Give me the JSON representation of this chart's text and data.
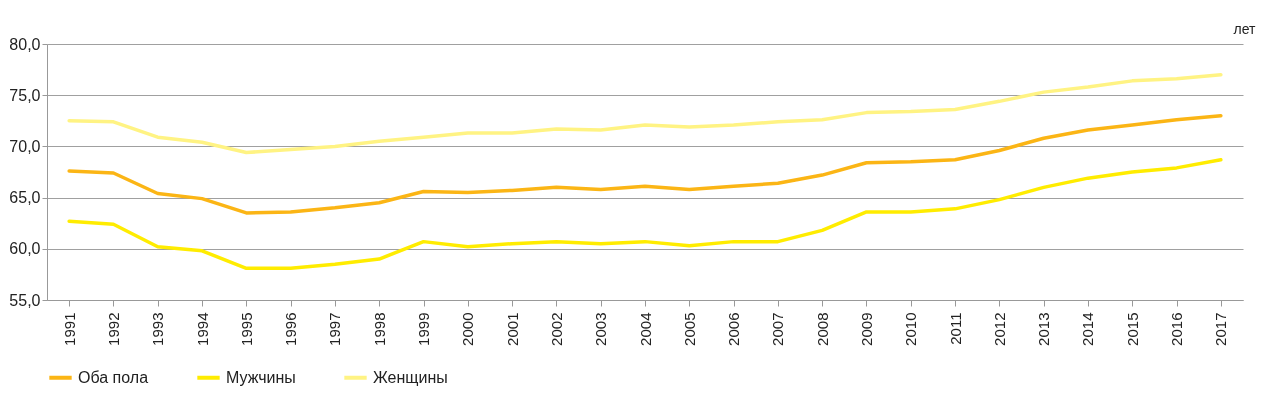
{
  "chart_data": {
    "type": "line",
    "ylabel": "лет",
    "categories": [
      "1991",
      "1992",
      "1993",
      "1994",
      "1995",
      "1996",
      "1997",
      "1998",
      "1999",
      "2000",
      "2001",
      "2002",
      "2003",
      "2004",
      "2005",
      "2006",
      "2007",
      "2008",
      "2009",
      "2010",
      "2011",
      "2012",
      "2013",
      "2014",
      "2015",
      "2016",
      "2017"
    ],
    "series": [
      {
        "name": "Оба пола",
        "color": "#fbb515",
        "values": [
          67.6,
          67.4,
          65.4,
          64.9,
          63.5,
          63.6,
          64.0,
          64.5,
          65.6,
          65.5,
          65.7,
          66.0,
          65.8,
          66.1,
          65.8,
          66.1,
          66.4,
          67.2,
          68.4,
          68.5,
          68.7,
          69.6,
          70.8,
          71.6,
          72.1,
          72.6,
          73.0
        ]
      },
      {
        "name": "Мужчины",
        "color": "#ffec00",
        "values": [
          62.7,
          62.4,
          60.2,
          59.8,
          58.1,
          58.1,
          58.5,
          59.0,
          60.7,
          60.2,
          60.5,
          60.7,
          60.5,
          60.7,
          60.3,
          60.7,
          60.7,
          61.8,
          63.6,
          63.6,
          63.9,
          64.8,
          66.0,
          66.9,
          67.5,
          67.9,
          68.7
        ]
      },
      {
        "name": "Женщины",
        "color": "#fff383",
        "values": [
          72.5,
          72.4,
          70.9,
          70.4,
          69.4,
          69.7,
          70.0,
          70.5,
          70.9,
          71.3,
          71.3,
          71.7,
          71.6,
          72.1,
          71.9,
          72.1,
          72.4,
          72.6,
          73.3,
          73.4,
          73.6,
          74.4,
          75.3,
          75.8,
          76.4,
          76.6,
          77.0
        ]
      }
    ],
    "ylim": [
      55,
      80
    ],
    "yticks": [
      {
        "value": 55,
        "label": "55,0"
      },
      {
        "value": 60,
        "label": "60,0"
      },
      {
        "value": 65,
        "label": "65,0"
      },
      {
        "value": 70,
        "label": "70,0"
      },
      {
        "value": 75,
        "label": "75,0"
      },
      {
        "value": 80,
        "label": "80,0"
      }
    ],
    "grid": "y",
    "legend": "bottom"
  }
}
